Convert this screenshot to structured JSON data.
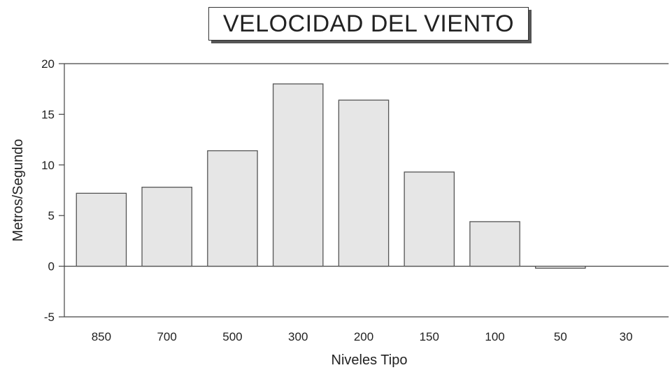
{
  "chart_data": {
    "type": "bar",
    "title": "VELOCIDAD DEL VIENTO",
    "xlabel": "Niveles Tipo",
    "ylabel": "Metros/Segundo",
    "categories": [
      "850",
      "700",
      "500",
      "300",
      "200",
      "150",
      "100",
      "50",
      "30"
    ],
    "values": [
      7.2,
      7.8,
      11.4,
      18.0,
      16.4,
      9.3,
      4.4,
      -0.2,
      0.0
    ],
    "ylim": [
      -5,
      20
    ],
    "yticks": [
      20,
      15,
      10,
      5,
      0,
      -5
    ],
    "grid": false,
    "bar_color": "#e6e6e6",
    "bar_edge_color": "#555555"
  }
}
